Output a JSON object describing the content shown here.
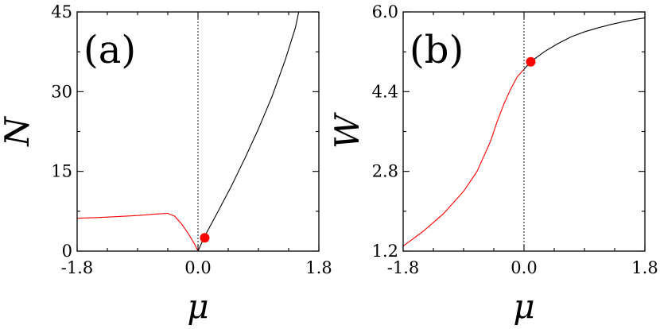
{
  "chart_data": [
    {
      "type": "line",
      "panel_label": "(a)",
      "xlabel": "μ",
      "ylabel": "N",
      "xlim": [
        -1.8,
        1.8
      ],
      "ylim": [
        0,
        45
      ],
      "xticks": [
        "-1.8",
        "0.0",
        "1.8"
      ],
      "yticks": [
        "0",
        "15",
        "30",
        "45"
      ],
      "zero_line": true,
      "series": [
        {
          "color": "#ff0000",
          "x": [
            -1.8,
            -1.5,
            -1.2,
            -0.9,
            -0.6,
            -0.45,
            -0.35,
            -0.25,
            -0.15,
            -0.05,
            0.0
          ],
          "y": [
            6.2,
            6.3,
            6.5,
            6.7,
            7.0,
            7.1,
            6.6,
            5.2,
            3.4,
            1.3,
            0.0
          ]
        },
        {
          "color": "#000000",
          "x": [
            0.0,
            0.1,
            0.3,
            0.5,
            0.7,
            0.9,
            1.1,
            1.3,
            1.45,
            1.5
          ],
          "y": [
            0.0,
            2.8,
            7.5,
            12.3,
            17.5,
            23.0,
            29.0,
            36.0,
            42.0,
            45.0
          ]
        }
      ],
      "marker": {
        "x": 0.1,
        "y": 2.5,
        "color": "#ff0000"
      }
    },
    {
      "type": "line",
      "panel_label": "(b)",
      "xlabel": "μ",
      "ylabel": "W",
      "xlim": [
        -1.8,
        1.8
      ],
      "ylim": [
        1.2,
        6.0
      ],
      "xticks": [
        "-1.8",
        "0.0",
        "1.8"
      ],
      "yticks": [
        "1.2",
        "2.8",
        "4.4",
        "6.0"
      ],
      "zero_line": true,
      "series": [
        {
          "color": "#ff0000",
          "x": [
            -1.8,
            -1.5,
            -1.2,
            -0.9,
            -0.7,
            -0.5,
            -0.4,
            -0.3,
            -0.2,
            -0.1,
            0.0
          ],
          "y": [
            1.3,
            1.6,
            1.95,
            2.4,
            2.8,
            3.4,
            3.8,
            4.15,
            4.45,
            4.7,
            4.85
          ]
        },
        {
          "color": "#000000",
          "x": [
            0.0,
            0.1,
            0.3,
            0.5,
            0.7,
            0.9,
            1.1,
            1.3,
            1.5,
            1.7,
            1.8
          ],
          "y": [
            4.85,
            5.0,
            5.2,
            5.36,
            5.5,
            5.6,
            5.68,
            5.75,
            5.81,
            5.86,
            5.88
          ]
        }
      ],
      "marker": {
        "x": 0.1,
        "y": 5.0,
        "color": "#ff0000"
      }
    }
  ]
}
